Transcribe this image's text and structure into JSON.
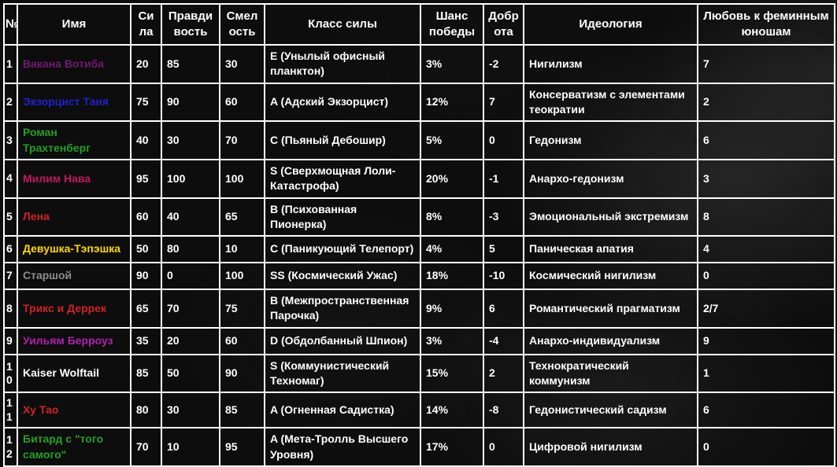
{
  "page": {
    "background_color": "#0d0d0d",
    "border_color": "#ffffff",
    "text_color": "#ffffff"
  },
  "table": {
    "columns": [
      {
        "key": "num",
        "label": "№"
      },
      {
        "key": "name",
        "label": "Имя"
      },
      {
        "key": "strength",
        "label": "Сила"
      },
      {
        "key": "truth",
        "label": "Правдивость"
      },
      {
        "key": "courage",
        "label": "Смелость"
      },
      {
        "key": "power_class",
        "label": "Класс силы"
      },
      {
        "key": "win_chance",
        "label": "Шанс победы"
      },
      {
        "key": "kindness",
        "label": "Доброта"
      },
      {
        "key": "ideology",
        "label": "Идеология"
      },
      {
        "key": "love",
        "label": "Любовь к феминным юношам"
      }
    ],
    "rows": [
      {
        "num": "1",
        "name": "Вакана Вотиба",
        "name_color": "#731873",
        "strength": "20",
        "truth": "85",
        "courage": "30",
        "power_class": "E (Унылый офисный планктон)",
        "win_chance": "3%",
        "kindness": "-2",
        "ideology": "Нигилизм",
        "love": "7"
      },
      {
        "num": "2",
        "name": "Экзорцист Таня",
        "name_color": "#2121cd",
        "strength": "75",
        "truth": "90",
        "courage": "60",
        "power_class": "A (Адский Экзорцист)",
        "win_chance": "12%",
        "kindness": "7",
        "ideology": "Консерватизм с элементами теократии",
        "love": "2"
      },
      {
        "num": "3",
        "name": "Роман Трахтенберг",
        "name_color": "#22a022",
        "strength": "40",
        "truth": "30",
        "courage": "70",
        "power_class": "C (Пьяный Дебошир)",
        "win_chance": "5%",
        "kindness": "0",
        "ideology": "Гедонизм",
        "love": "6"
      },
      {
        "num": "4",
        "name": "Милим Нава",
        "name_color": "#c2185b",
        "strength": "95",
        "truth": "100",
        "courage": "100",
        "power_class": "S (Сверхмощная Лоли-Катастрофа)",
        "win_chance": "20%",
        "kindness": "-1",
        "ideology": "Анархо-гедонизм",
        "love": "3"
      },
      {
        "num": "5",
        "name": "Лена",
        "name_color": "#cf2323",
        "strength": "60",
        "truth": "40",
        "courage": "65",
        "power_class": "B (Психованная Пионерка)",
        "win_chance": "8%",
        "kindness": "-3",
        "ideology": "Эмоциональный экстремизм",
        "love": "8"
      },
      {
        "num": "6",
        "name": "Девушка-Тэпэшка",
        "name_color": "#ffd700",
        "strength": "50",
        "truth": "80",
        "courage": "10",
        "power_class": "C (Паникующий Телепорт)",
        "win_chance": "4%",
        "kindness": "5",
        "ideology": "Паническая апатия",
        "love": "4"
      },
      {
        "num": "7",
        "name": "Старшой",
        "name_color": "#8c8c8c",
        "strength": "90",
        "truth": "0",
        "courage": "100",
        "power_class": "SS (Космический Ужас)",
        "win_chance": "18%",
        "kindness": "-10",
        "ideology": "Космический нигилизм",
        "love": "0"
      },
      {
        "num": "8",
        "name": "Трикс и Деррек",
        "name_color": "#cf2323",
        "strength": "65",
        "truth": "70",
        "courage": "75",
        "power_class": "B (Межпространственная Парочка)",
        "win_chance": "9%",
        "kindness": "6",
        "ideology": "Романтический прагматизм",
        "love": "2/7"
      },
      {
        "num": "9",
        "name": "Уильям Берроуз",
        "name_color": "#b020b0",
        "strength": "35",
        "truth": "20",
        "courage": "60",
        "power_class": "D (Обдолбанный Шпион)",
        "win_chance": "3%",
        "kindness": "-4",
        "ideology": "Анархо-индивидуализм",
        "love": "9"
      },
      {
        "num": "10",
        "name": "Kaiser Wolftail",
        "name_color": "#ffffff",
        "strength": "85",
        "truth": "50",
        "courage": "90",
        "power_class": "S (Коммунистический Техномаг)",
        "win_chance": "15%",
        "kindness": "2",
        "ideology": "Технократический коммунизм",
        "love": "1"
      },
      {
        "num": "11",
        "name": "Ху Тао",
        "name_color": "#cf2323",
        "strength": "80",
        "truth": "30",
        "courage": "85",
        "power_class": "A (Огненная Садистка)",
        "win_chance": "14%",
        "kindness": "-8",
        "ideology": "Гедонистический садизм",
        "love": "6"
      },
      {
        "num": "12",
        "name": "Битард с \"того самого\"",
        "name_color": "#22a022",
        "strength": "70",
        "truth": "10",
        "courage": "95",
        "power_class": "A (Мета-Тролль Высшего Уровня)",
        "win_chance": "17%",
        "kindness": "0",
        "ideology": "Цифровой нигилизм",
        "love": "0"
      }
    ]
  }
}
